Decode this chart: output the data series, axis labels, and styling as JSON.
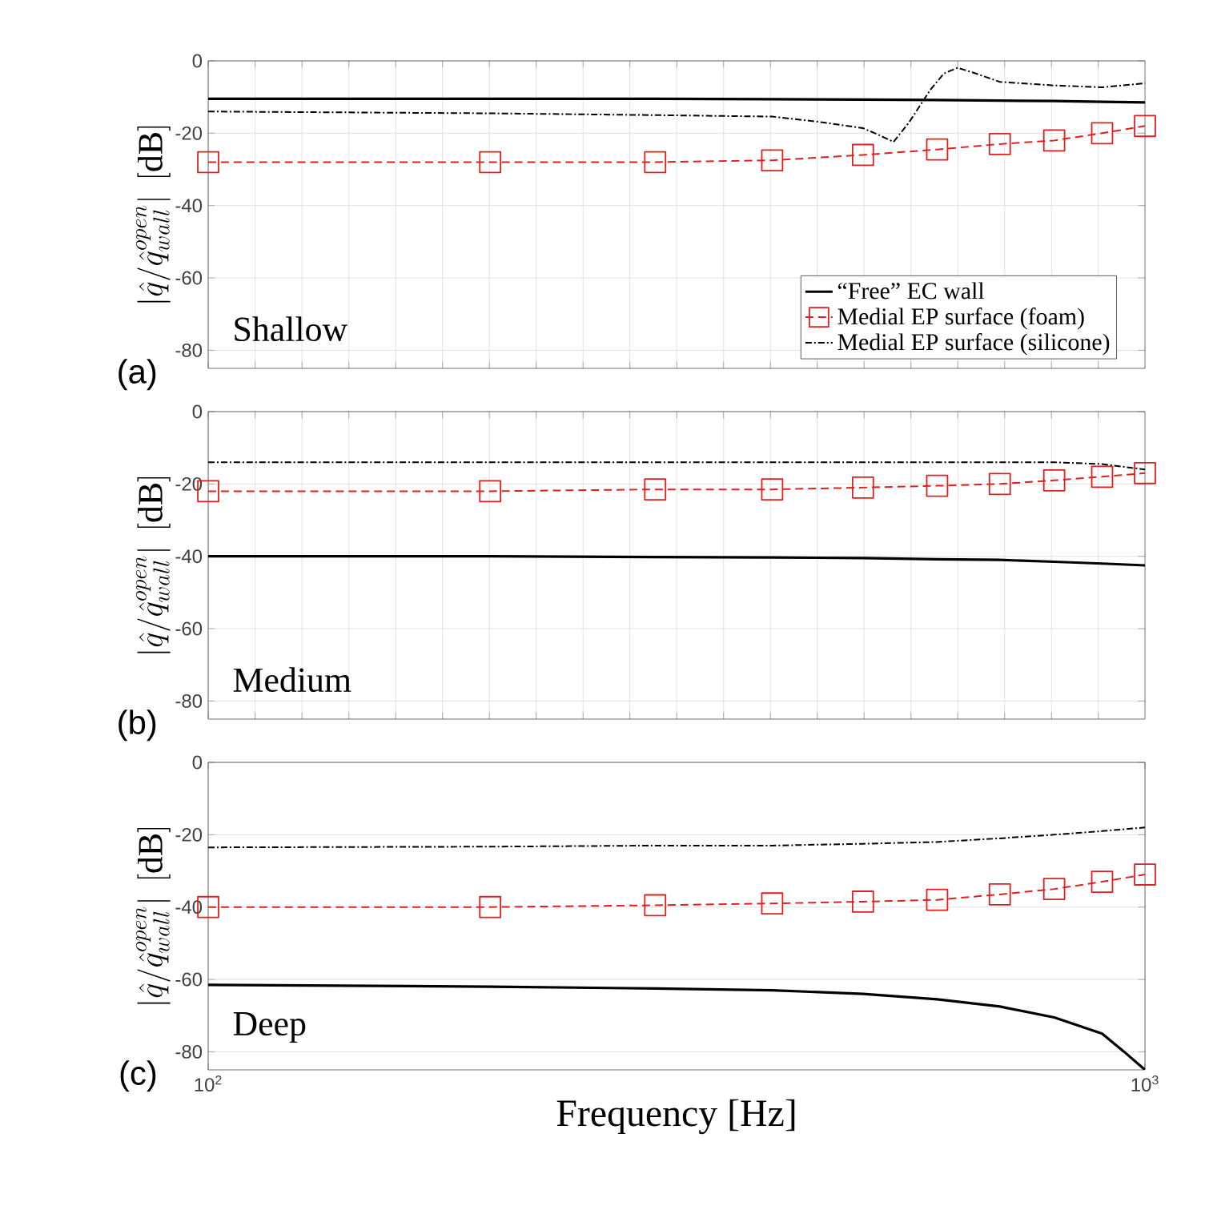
{
  "chart_data": [
    {
      "type": "line",
      "log": "x",
      "xlim": [
        100,
        1000
      ],
      "ylim": [
        -85,
        0
      ],
      "yticks": [
        -80,
        -60,
        -40,
        -20,
        0
      ],
      "ylabel": "\\left|\\hat{q}/\\hat{q}^{open}_{wall}\\right|\\ [\\mathrm{dB}]",
      "grid": true,
      "tick_labels": "y",
      "legend": "bottom right",
      "annotations": [
        "(a)",
        "Shallow"
      ],
      "series": [
        {
          "name": "“Free” EC wall",
          "color": "#000000",
          "line_style": "solid",
          "marker": "none",
          "x": [
            100,
            200,
            300,
            400,
            500,
            600,
            700,
            800,
            900,
            1000
          ],
          "values": [
            -10.5,
            -10.5,
            -10.5,
            -10.6,
            -10.7,
            -10.8,
            -11,
            -11.1,
            -11.3,
            -11.5
          ]
        },
        {
          "name": "Medial EP surface (foam)",
          "color": "#e02020",
          "line_style": "dashed",
          "marker": "square",
          "x": [
            100,
            200,
            300,
            400,
            500,
            600,
            700,
            800,
            900,
            1000
          ],
          "values": [
            -28,
            -28,
            -28,
            -27.5,
            -26,
            -24.5,
            -23,
            -22,
            -20,
            -18
          ]
        },
        {
          "name": "Medial EP surface (silicone)",
          "color": "#000000",
          "line_style": "dashdot",
          "marker": "none",
          "x": [
            100,
            200,
            300,
            400,
            450,
            500,
            520,
            539,
            560,
            590,
            610,
            631,
            660,
            700,
            800,
            900,
            1000
          ],
          "values": [
            -14,
            -14.5,
            -15,
            -15.4,
            -16.9,
            -18.6,
            -20.5,
            -22.4,
            -17,
            -8,
            -3.5,
            -1.9,
            -3.5,
            -5.8,
            -6.8,
            -7.3,
            -6.2
          ]
        }
      ]
    },
    {
      "type": "line",
      "log": "x",
      "xlim": [
        100,
        1000
      ],
      "ylim": [
        -85,
        0
      ],
      "yticks": [
        -80,
        -60,
        -40,
        -20,
        0
      ],
      "ylabel": "\\left|\\hat{q}/\\hat{q}^{open}_{wall}\\right|\\ [\\mathrm{dB}]",
      "grid": true,
      "tick_labels": "y",
      "annotations": [
        "(b)",
        "Medium"
      ],
      "series": [
        {
          "color": "#000000",
          "line_style": "solid",
          "marker": "none",
          "x": [
            100,
            200,
            300,
            400,
            500,
            600,
            700,
            800,
            900,
            1000
          ],
          "values": [
            -40,
            -40,
            -40.2,
            -40.3,
            -40.5,
            -40.8,
            -41,
            -41.5,
            -42,
            -42.5
          ]
        },
        {
          "color": "#e02020",
          "line_style": "dashed",
          "marker": "square",
          "x": [
            100,
            200,
            300,
            400,
            500,
            600,
            700,
            800,
            900,
            1000
          ],
          "values": [
            -22,
            -22,
            -21.5,
            -21.5,
            -21,
            -20.5,
            -20,
            -19,
            -18,
            -17
          ]
        },
        {
          "color": "#000000",
          "line_style": "dashdot",
          "marker": "none",
          "x": [
            100,
            200,
            300,
            400,
            500,
            600,
            700,
            800,
            900,
            1000
          ],
          "values": [
            -14,
            -14,
            -14,
            -14,
            -14,
            -14,
            -14,
            -14,
            -14.5,
            -16
          ]
        }
      ]
    },
    {
      "type": "line",
      "log": "x",
      "xlim": [
        100,
        1000
      ],
      "xticks": [
        {
          "value": 100,
          "label": "10$^{2}$"
        },
        {
          "value": 1000,
          "label": "10$^{3}$"
        }
      ],
      "ylim": [
        -85,
        0
      ],
      "yticks": [
        -80,
        -60,
        -40,
        -20,
        0
      ],
      "ylabel": "\\left|\\hat{q}/\\hat{q}^{open}_{wall}\\right|\\ [\\mathrm{dB}]",
      "xlabel": "Frequency [Hz]",
      "grid": true,
      "annotations": [
        "(c)",
        "Deep"
      ],
      "series": [
        {
          "color": "#000000",
          "line_style": "solid",
          "marker": "none",
          "x": [
            100,
            200,
            300,
            400,
            500,
            600,
            700,
            800,
            900,
            950,
            1000
          ],
          "values": [
            -61.5,
            -62,
            -62.5,
            -63,
            -64,
            -65.5,
            -67.5,
            -70.5,
            -75,
            -80,
            -85
          ]
        },
        {
          "color": "#e02020",
          "line_style": "dashed",
          "marker": "square",
          "x": [
            100,
            200,
            300,
            400,
            500,
            600,
            700,
            800,
            900,
            1000
          ],
          "values": [
            -40,
            -40,
            -39.5,
            -39,
            -38.5,
            -38,
            -36.5,
            -35,
            -33,
            -31
          ]
        },
        {
          "color": "#000000",
          "line_style": "dashdot",
          "marker": "none",
          "x": [
            100,
            200,
            300,
            400,
            500,
            600,
            700,
            800,
            900,
            1000
          ],
          "values": [
            -23.5,
            -23.3,
            -23,
            -23,
            -22.5,
            -22,
            -21,
            -20,
            -19,
            -18
          ]
        }
      ]
    }
  ]
}
